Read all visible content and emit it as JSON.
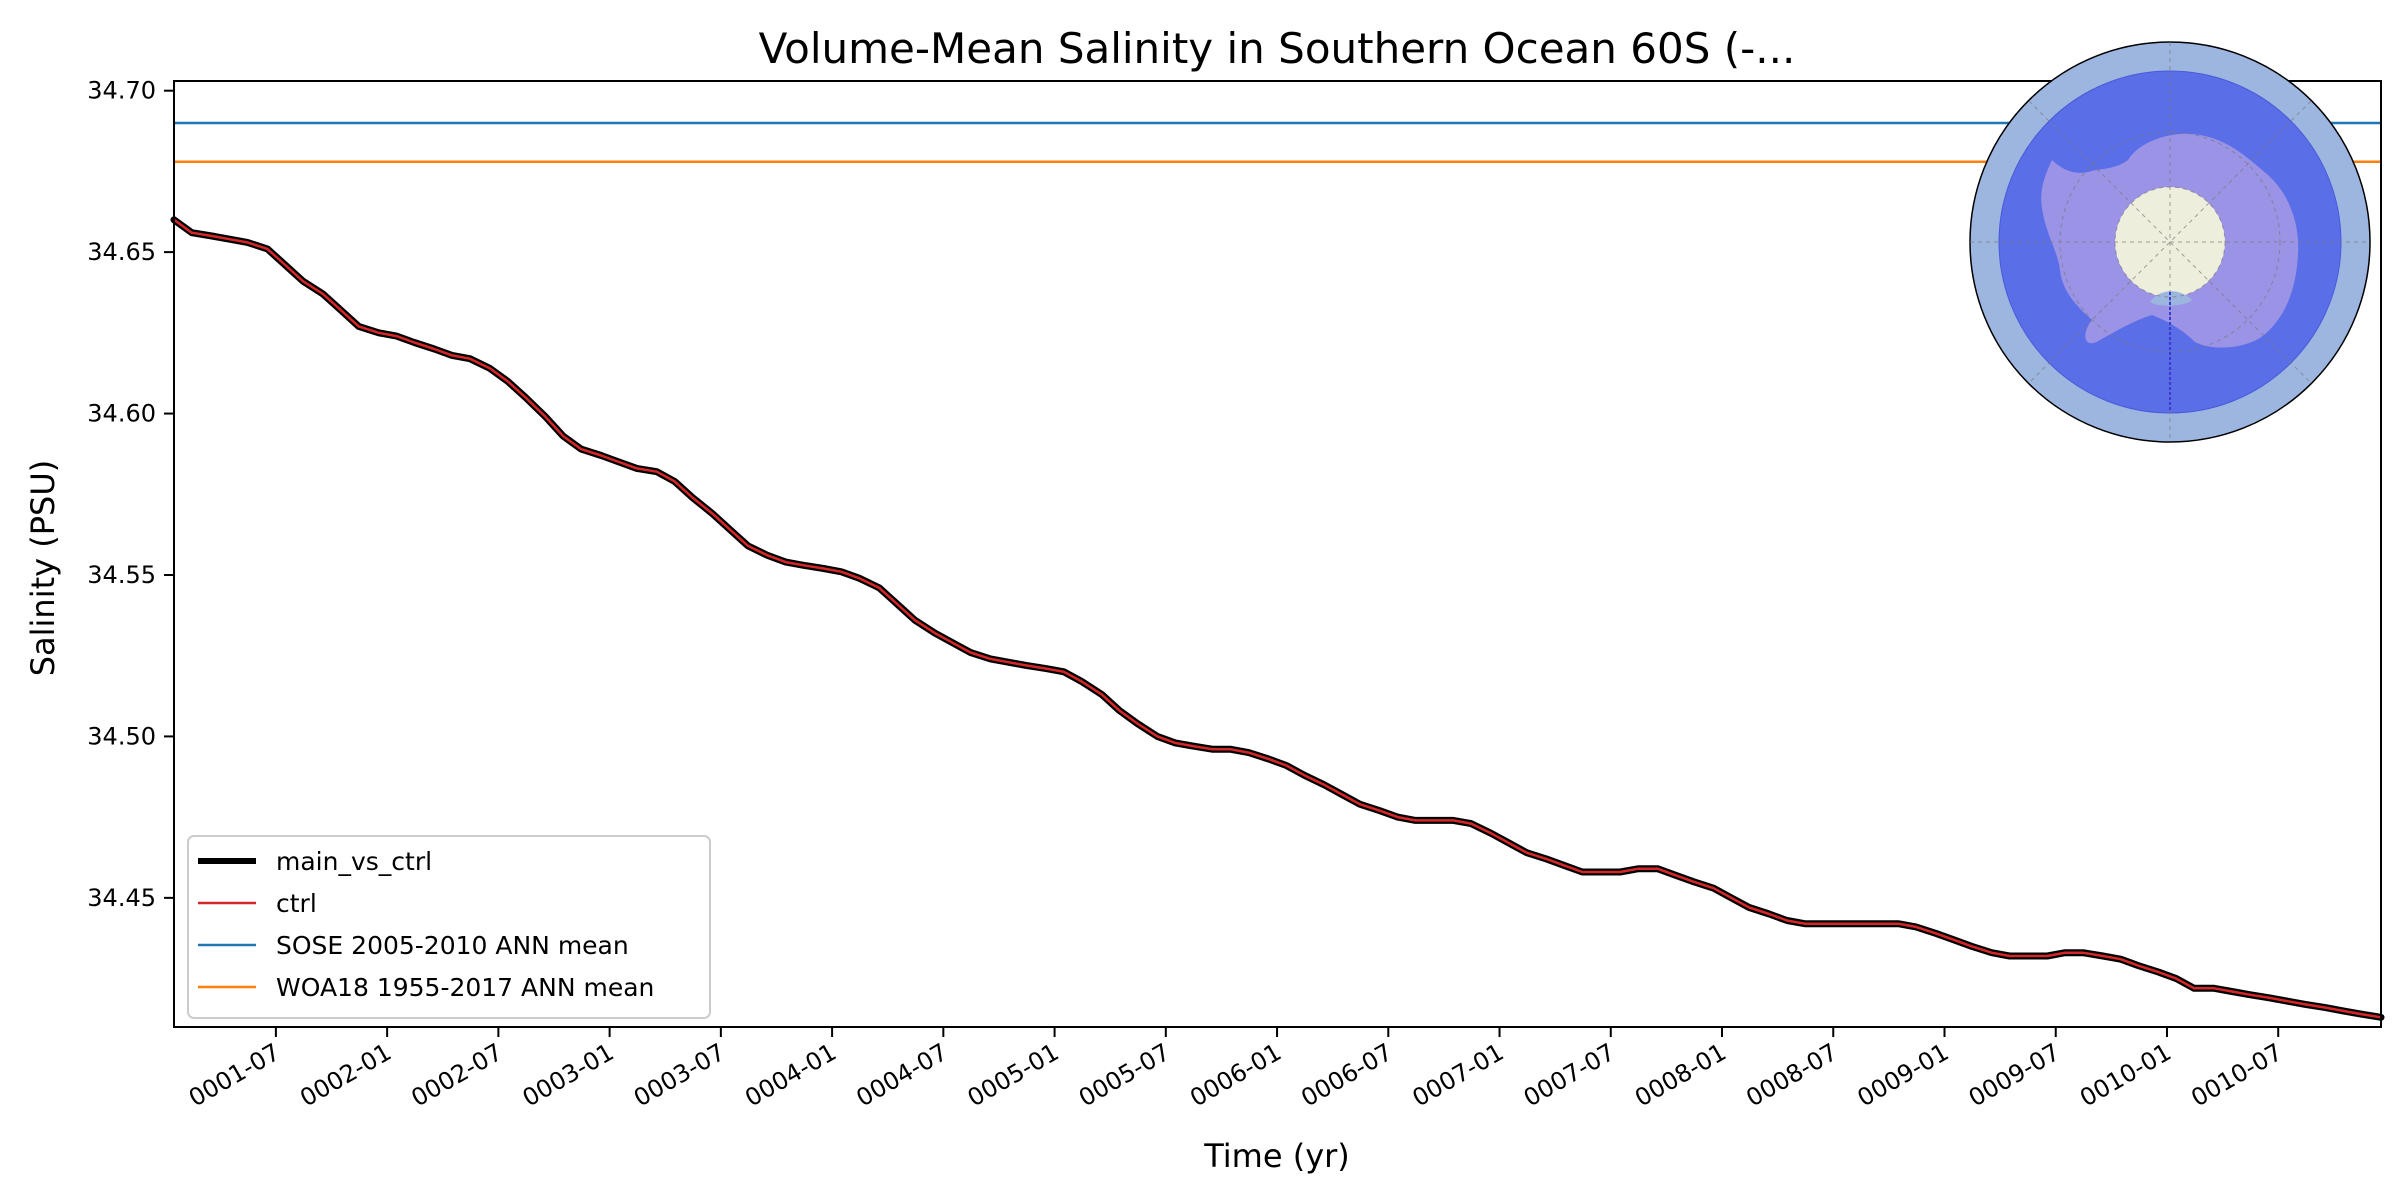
{
  "chart_data": {
    "type": "line",
    "title": "Volume-Mean Salinity in Southern Ocean 60S (-...",
    "xlabel": "Time (yr)",
    "ylabel": "Salinity (PSU)",
    "xlim_years": [
      0.0,
      9.92
    ],
    "ylim": [
      34.41,
      34.703
    ],
    "yticks": [
      34.45,
      34.5,
      34.55,
      34.6,
      34.65,
      34.7
    ],
    "ytick_labels": [
      "34.45",
      "34.50",
      "34.55",
      "34.60",
      "34.65",
      "34.70"
    ],
    "xticks": [
      0.458,
      0.958,
      1.458,
      1.958,
      2.458,
      2.958,
      3.458,
      3.958,
      4.458,
      4.958,
      5.458,
      5.958,
      6.458,
      6.958,
      7.458,
      7.958,
      8.458,
      8.958,
      9.458
    ],
    "xtick_labels": [
      "0001-07",
      "0002-01",
      "0002-07",
      "0003-01",
      "0003-07",
      "0004-01",
      "0004-07",
      "0005-01",
      "0005-07",
      "0006-01",
      "0006-07",
      "0007-01",
      "0007-07",
      "0008-01",
      "0008-07",
      "0009-01",
      "0009-07",
      "0010-01",
      "0010-07"
    ],
    "grid": false,
    "legend_position": "lower-left",
    "series": [
      {
        "name": "main_vs_ctrl",
        "color": "#000000",
        "style": "thick",
        "x": [
          0.0,
          0.08,
          0.17,
          0.25,
          0.33,
          0.42,
          0.5,
          0.58,
          0.67,
          0.75,
          0.83,
          0.92,
          1.0,
          1.08,
          1.17,
          1.25,
          1.33,
          1.42,
          1.5,
          1.58,
          1.67,
          1.75,
          1.83,
          1.92,
          2.0,
          2.08,
          2.17,
          2.25,
          2.33,
          2.42,
          2.5,
          2.58,
          2.67,
          2.75,
          2.83,
          2.92,
          3.0,
          3.08,
          3.17,
          3.25,
          3.33,
          3.42,
          3.5,
          3.58,
          3.67,
          3.75,
          3.83,
          3.92,
          4.0,
          4.08,
          4.17,
          4.25,
          4.33,
          4.42,
          4.5,
          4.58,
          4.67,
          4.75,
          4.83,
          4.92,
          5.0,
          5.08,
          5.17,
          5.25,
          5.33,
          5.42,
          5.5,
          5.58,
          5.67,
          5.75,
          5.83,
          5.92,
          6.0,
          6.08,
          6.17,
          6.25,
          6.33,
          6.42,
          6.5,
          6.58,
          6.67,
          6.75,
          6.83,
          6.92,
          7.0,
          7.08,
          7.17,
          7.25,
          7.33,
          7.42,
          7.5,
          7.58,
          7.67,
          7.75,
          7.83,
          7.92,
          8.0,
          8.08,
          8.17,
          8.25,
          8.33,
          8.42,
          8.5,
          8.58,
          8.67,
          8.75,
          8.83,
          8.92,
          9.0,
          9.08,
          9.17,
          9.25,
          9.33,
          9.42,
          9.5,
          9.58,
          9.67,
          9.75,
          9.83,
          9.92
        ],
        "values": [
          34.66,
          34.656,
          34.655,
          34.654,
          34.653,
          34.651,
          34.646,
          34.641,
          34.637,
          34.632,
          34.627,
          34.625,
          34.624,
          34.622,
          34.62,
          34.618,
          34.617,
          34.614,
          34.61,
          34.605,
          34.599,
          34.593,
          34.589,
          34.587,
          34.585,
          34.583,
          34.582,
          34.579,
          34.574,
          34.569,
          34.564,
          34.559,
          34.556,
          34.554,
          34.553,
          34.552,
          34.551,
          34.549,
          34.546,
          34.541,
          34.536,
          34.532,
          34.529,
          34.526,
          34.524,
          34.523,
          34.522,
          34.521,
          34.52,
          34.517,
          34.513,
          34.508,
          34.504,
          34.5,
          34.498,
          34.497,
          34.496,
          34.496,
          34.495,
          34.493,
          34.491,
          34.488,
          34.485,
          34.482,
          34.479,
          34.477,
          34.475,
          34.474,
          34.474,
          34.474,
          34.473,
          34.47,
          34.467,
          34.464,
          34.462,
          34.46,
          34.458,
          34.458,
          34.458,
          34.459,
          34.459,
          34.457,
          34.455,
          34.453,
          34.45,
          34.447,
          34.445,
          34.443,
          34.442,
          34.442,
          34.442,
          34.442,
          34.442,
          34.442,
          34.441,
          34.439,
          34.437,
          34.435,
          34.433,
          34.432,
          34.432,
          34.432,
          34.433,
          34.433,
          34.432,
          34.431,
          34.429,
          34.427,
          34.425,
          34.422,
          34.422,
          34.421,
          34.42,
          34.419,
          34.418,
          34.417,
          34.416,
          34.415,
          34.414,
          34.413
        ]
      },
      {
        "name": "ctrl",
        "color": "#d62728",
        "style": "thin"
      },
      {
        "name": "SOSE 2005-2010 ANN mean",
        "color": "#1f77b4",
        "style": "hline",
        "value": 34.69
      },
      {
        "name": "WOA18 1955-2017 ANN mean",
        "color": "#ff7f0e",
        "style": "hline",
        "value": 34.678
      }
    ],
    "inset_map": {
      "projection": "south-polar-stereographic",
      "region": "Southern Ocean south of 60S",
      "ocean_color": "#9db6e0",
      "region_color": "#5a6ee8",
      "land_color": "#9b93e6",
      "pole_cap_color": "#eeeedc"
    }
  }
}
